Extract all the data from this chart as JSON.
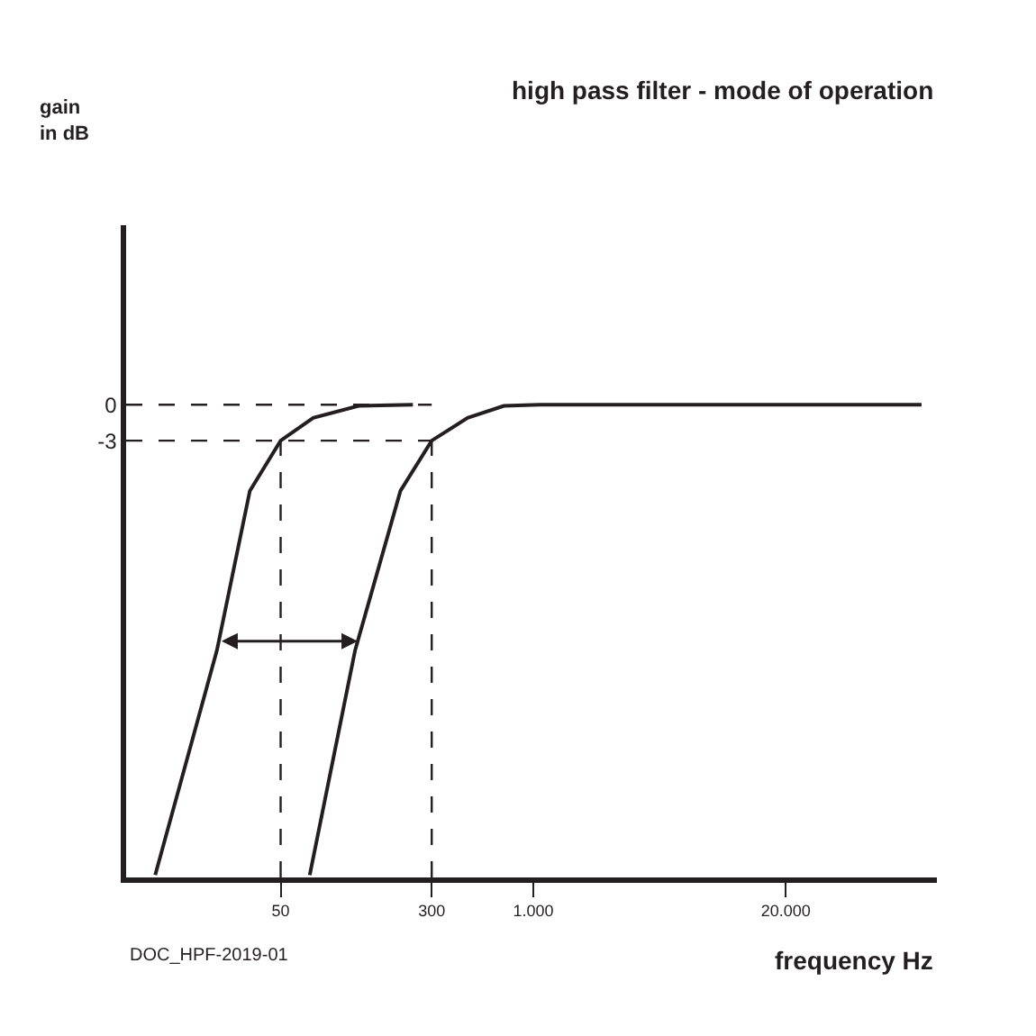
{
  "chart_data": {
    "type": "line",
    "title": "high pass filter - mode of operation",
    "xlabel": "frequency Hz",
    "ylabel": "gain\nin dB",
    "annotations": [
      "DOC_HPF-2019-01"
    ],
    "series": [
      {
        "color": "#231f20",
        "x": [
          11.3,
          23.5,
          34.7,
          50,
          73.6,
          126,
          240
        ],
        "values": [
          -39.3,
          -20.5,
          -7.2,
          -3,
          -1.1,
          -0.1,
          0
        ]
      },
      {
        "color": "#231f20",
        "x": [
          70.6,
          121,
          207,
          300,
          459,
          706,
          1084,
          100000
        ],
        "values": [
          -39.3,
          -20.5,
          -7.2,
          -3,
          -1.1,
          -0.1,
          0,
          0
        ]
      }
    ],
    "log": "x",
    "xlim": [
      8,
      120000
    ],
    "xticks": [
      50,
      300,
      {
        "value": 1000,
        "label": "1.000"
      },
      {
        "value": 20000,
        "label": "20.000"
      }
    ],
    "ylim": [
      -39.5,
      15
    ],
    "yticks": [
      0,
      -3
    ],
    "ref_lines": [
      {
        "axis": "y",
        "value": 0,
        "line_style": "dashed",
        "color": "#231f20"
      },
      {
        "axis": "y",
        "value": -3,
        "line_style": "dashed",
        "color": "#231f20"
      },
      {
        "axis": "x",
        "value": 50,
        "line_style": "dashed",
        "color": "#231f20"
      },
      {
        "axis": "x",
        "value": 300,
        "line_style": "dashed",
        "color": "#231f20"
      }
    ],
    "marker": "none",
    "line_style": "solid"
  }
}
